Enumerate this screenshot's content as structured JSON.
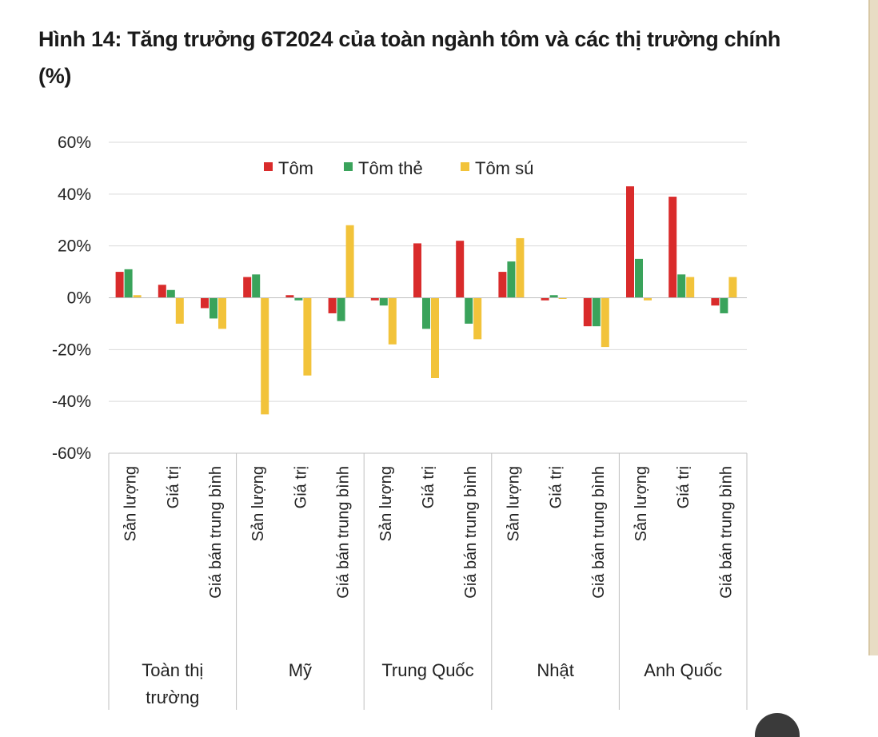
{
  "title": "Hình 14: Tăng trưởng 6T2024 của toàn ngành tôm và các thị trường chính (%)",
  "chart_data": {
    "type": "bar",
    "title": "Hình 14: Tăng trưởng 6T2024 của toàn ngành tôm và các thị trường chính (%)",
    "ylim": [
      -60,
      60
    ],
    "yticks": [
      60,
      40,
      20,
      0,
      -20,
      -40,
      -60
    ],
    "ytick_labels": [
      "60%",
      "40%",
      "20%",
      "0%",
      "-20%",
      "-40%",
      "-60%"
    ],
    "grid": true,
    "legend_position": "top",
    "groups": [
      {
        "name": "Toàn thị trường",
        "lines": [
          "Toàn thị",
          "trường"
        ],
        "categories": [
          "Sản lượng",
          "Giá trị",
          "Giá bán trung bình"
        ]
      },
      {
        "name": "Mỹ",
        "lines": [
          "Mỹ"
        ],
        "categories": [
          "Sản lượng",
          "Giá trị",
          "Giá bán trung bình"
        ]
      },
      {
        "name": "Trung Quốc",
        "lines": [
          "Trung Quốc"
        ],
        "categories": [
          "Sản lượng",
          "Giá trị",
          "Giá bán trung bình"
        ]
      },
      {
        "name": "Nhật",
        "lines": [
          "Nhật"
        ],
        "categories": [
          "Sản lượng",
          "Giá trị",
          "Giá bán trung bình"
        ]
      },
      {
        "name": "Anh Quốc",
        "lines": [
          "Anh Quốc"
        ],
        "categories": [
          "Sản lượng",
          "Giá trị",
          "Giá bán trung bình"
        ]
      }
    ],
    "series": [
      {
        "name": "Tôm",
        "color": "#d92b2b",
        "values": [
          10,
          5,
          -4,
          8,
          1,
          -6,
          -1,
          21,
          22,
          10,
          -1,
          -11,
          43,
          39,
          -3
        ]
      },
      {
        "name": "Tôm thẻ",
        "color": "#3aa35b",
        "values": [
          11,
          3,
          -8,
          9,
          -1,
          -9,
          -3,
          -12,
          -10,
          14,
          1,
          -11,
          15,
          9,
          -6
        ]
      },
      {
        "name": "Tôm sú",
        "color": "#f2c33a",
        "values": [
          1,
          -10,
          -12,
          -45,
          -30,
          28,
          -18,
          -31,
          -16,
          23,
          0,
          -19,
          -1,
          8,
          8
        ]
      }
    ]
  }
}
